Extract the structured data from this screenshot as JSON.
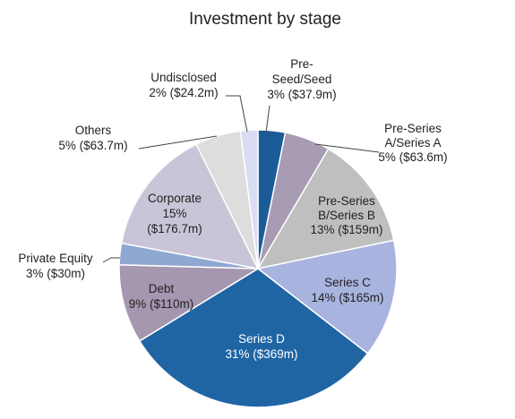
{
  "chart_data": {
    "type": "pie",
    "title": "Investment by stage",
    "slices": [
      {
        "name": "Pre-Seed/Seed",
        "percent_label": "3%",
        "amount_label": "($37.9m)",
        "value": 37.9,
        "color": "#1b5c98"
      },
      {
        "name": "Pre-Series A/Series A",
        "percent_label": "5%",
        "amount_label": "($63.6m)",
        "value": 63.6,
        "color": "#a79cb4"
      },
      {
        "name": "Pre-Series B/Series B",
        "percent_label": "13%",
        "amount_label": "($159m)",
        "value": 159,
        "color": "#bfbfbf"
      },
      {
        "name": "Series C",
        "percent_label": "14%",
        "amount_label": "($165m)",
        "value": 165,
        "color": "#a9b3df"
      },
      {
        "name": "Series D",
        "percent_label": "31%",
        "amount_label": "($369m)",
        "value": 369,
        "color": "#1f65a4"
      },
      {
        "name": "Debt",
        "percent_label": "9%",
        "amount_label": "($110m)",
        "value": 110,
        "color": "#a597af"
      },
      {
        "name": "Private Equity",
        "percent_label": "3%",
        "amount_label": "($30m)",
        "value": 30,
        "color": "#8fa8d2"
      },
      {
        "name": "Corporate",
        "percent_label": "15%",
        "amount_label": "($176.7m)",
        "value": 176.7,
        "color": "#cac4d8"
      },
      {
        "name": "Others",
        "percent_label": "5%",
        "amount_label": "($63.7m)",
        "value": 63.7,
        "color": "#dddddd"
      },
      {
        "name": "Undisclosed",
        "percent_label": "2%",
        "amount_label": "($24.2m)",
        "value": 24.2,
        "color": "#d9dcf2"
      }
    ]
  },
  "labels": {
    "preseed": {
      "lines": [
        "Pre-",
        "Seed/Seed",
        "3% ($37.9m)"
      ],
      "color": "#222222"
    },
    "seriesA": {
      "lines": [
        "Pre-Series",
        "A/Series A",
        "5% ($63.6m)"
      ],
      "color": "#222222"
    },
    "seriesB": {
      "lines": [
        "Pre-Series",
        "B/Series B",
        "13% ($159m)"
      ],
      "color": "#222222"
    },
    "seriesC": {
      "lines": [
        "Series C",
        "14% ($165m)"
      ],
      "color": "#222222"
    },
    "seriesD": {
      "lines": [
        "Series D",
        "31% ($369m)"
      ],
      "color": "#ffffff"
    },
    "debt": {
      "lines": [
        "Debt",
        "9% ($110m)"
      ],
      "color": "#222222"
    },
    "privateEquity": {
      "lines": [
        "Private  Equity",
        "3% ($30m)"
      ],
      "color": "#222222"
    },
    "corporate": {
      "lines": [
        "Corporate",
        "15%",
        "($176.7m)"
      ],
      "color": "#222222"
    },
    "others": {
      "lines": [
        "Others",
        "5% ($63.7m)"
      ],
      "color": "#222222"
    },
    "undisclosed": {
      "lines": [
        "Undisclosed",
        "2% ($24.2m)"
      ],
      "color": "#222222"
    }
  }
}
